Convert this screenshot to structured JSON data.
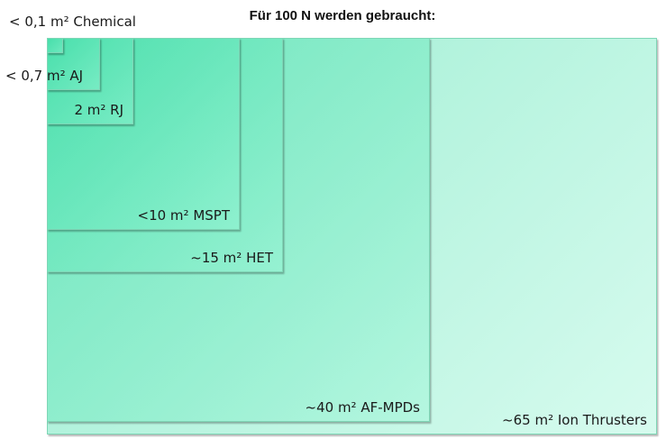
{
  "title": "Für 100 N werden gebraucht:",
  "areas": [
    {
      "label": "~65 m² Ion Thrusters",
      "area_m2": 65,
      "approx": "~"
    },
    {
      "label": "~40 m² AF-MPDs",
      "area_m2": 40,
      "approx": "~"
    },
    {
      "label": "~15 m² HET",
      "area_m2": 15,
      "approx": "~"
    },
    {
      "label": "<10 m² MSPT",
      "area_m2": 10,
      "approx": "<"
    },
    {
      "label": "2 m² RJ",
      "area_m2": 2,
      "approx": ""
    },
    {
      "label": "< 0,7 m² AJ",
      "area_m2": 0.7,
      "approx": "<"
    },
    {
      "label": "< 0,1 m² Chemical",
      "area_m2": 0.1,
      "approx": "<"
    }
  ],
  "colors": {
    "fill": "#7ff0c8",
    "border": "#7fd6b6"
  }
}
